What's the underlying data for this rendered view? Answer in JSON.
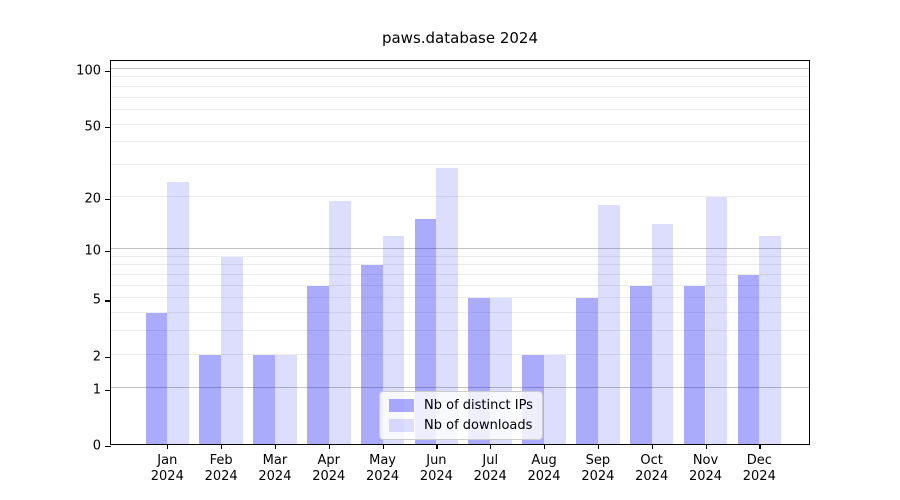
{
  "chart_data": {
    "type": "bar",
    "title": "paws.database 2024",
    "categories": [
      "Jan",
      "Feb",
      "Mar",
      "Apr",
      "May",
      "Jun",
      "Jul",
      "Aug",
      "Sep",
      "Oct",
      "Nov",
      "Dec"
    ],
    "xtick_year": "2024",
    "series": [
      {
        "name": "Nb of distinct IPs",
        "color": "#0a0af557",
        "values": [
          4,
          2,
          2,
          6,
          8,
          15,
          5,
          2,
          5,
          6,
          6,
          7
        ]
      },
      {
        "name": "Nb of downloads",
        "color": "#0a0af523",
        "values": [
          24,
          9,
          2,
          19,
          12,
          29,
          5,
          2,
          18,
          14,
          20,
          12
        ]
      }
    ],
    "yscale": "log1p",
    "yticks": [
      0,
      1,
      2,
      5,
      10,
      20,
      50,
      100
    ],
    "ylim": [
      0,
      114
    ],
    "xlabel": "",
    "ylabel": "",
    "grid": "horizontal, log minor lines, majors at 1/10/100",
    "legend_position": "lower-center-inside"
  }
}
